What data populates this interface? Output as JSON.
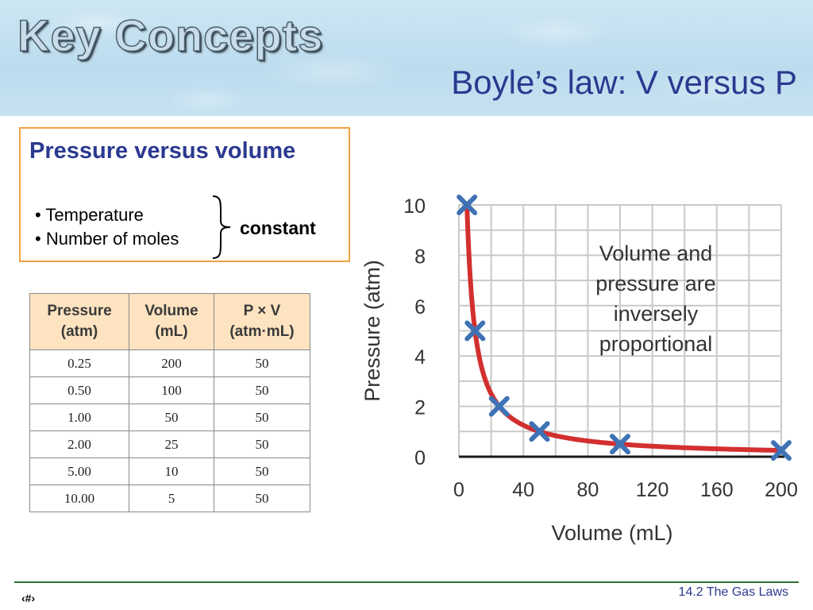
{
  "header": {
    "section_label": "Key Concepts",
    "title": "Boyle’s law: V versus P"
  },
  "info_box": {
    "heading": "Pressure versus volume",
    "bullets": [
      "• Temperature",
      "• Number of moles"
    ],
    "brace_label": "constant"
  },
  "table": {
    "headers": [
      [
        "Pressure",
        "(atm)"
      ],
      [
        "Volume",
        "(mL)"
      ],
      [
        "P × V",
        "(atm·mL)"
      ]
    ],
    "rows": [
      [
        "0.25",
        "200",
        "50"
      ],
      [
        "0.50",
        "100",
        "50"
      ],
      [
        "1.00",
        "50",
        "50"
      ],
      [
        "2.00",
        "25",
        "50"
      ],
      [
        "5.00",
        "10",
        "50"
      ],
      [
        "10.00",
        "5",
        "50"
      ]
    ]
  },
  "chart_data": {
    "type": "line",
    "xlabel": "Volume (mL)",
    "ylabel": "Pressure (atm)",
    "xlim": [
      0,
      200
    ],
    "ylim": [
      0,
      10
    ],
    "x_ticks": [
      0,
      40,
      80,
      120,
      160,
      200
    ],
    "y_ticks": [
      0,
      2,
      4,
      6,
      8,
      10
    ],
    "grid": true,
    "annotation": [
      "Volume and",
      "pressure are",
      "inversely",
      "proportional"
    ],
    "series": [
      {
        "x": [
          5,
          10,
          25,
          50,
          100,
          200
        ],
        "y": [
          10,
          5,
          2,
          1,
          0.5,
          0.25
        ],
        "line_color": "#d32f2f",
        "marker_color": "#3f72b5"
      }
    ]
  },
  "footer": {
    "page_number": "‹#›",
    "section": "14.2  The Gas Laws"
  },
  "colors": {
    "title": "#2b3990",
    "box_border": "#f2a341",
    "table_header_bg": "#fde3c0",
    "footer_rule": "#2f6e2f"
  }
}
